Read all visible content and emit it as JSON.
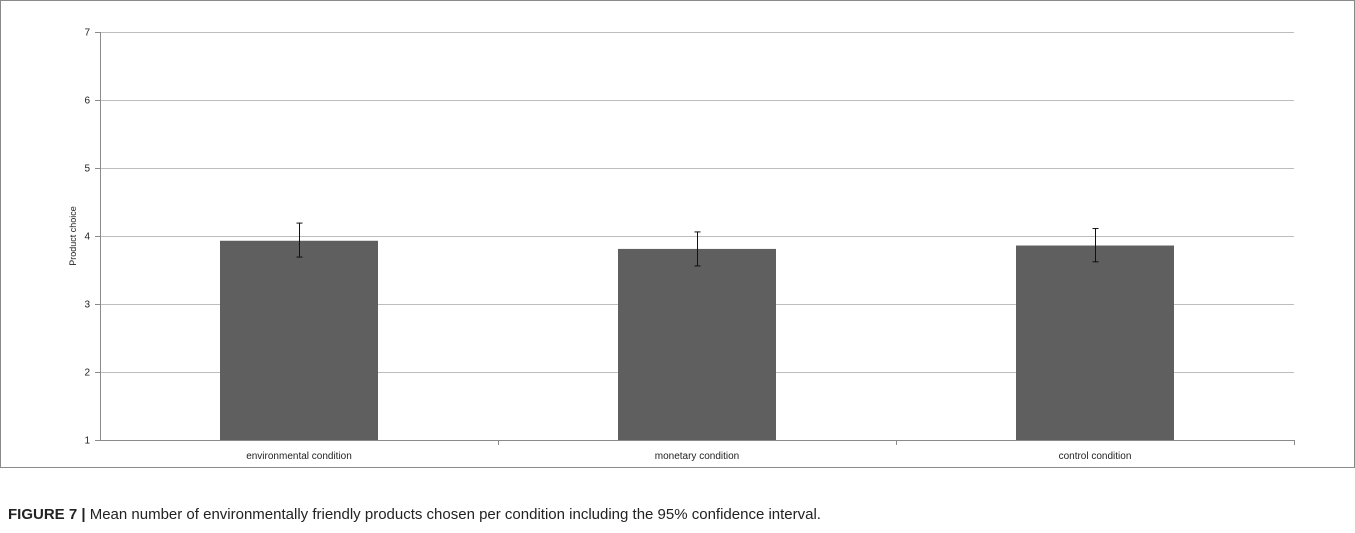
{
  "caption": {
    "label": "FIGURE 7 |",
    "text": "Mean number of environmentally friendly products chosen per condition including the 95% confidence interval."
  },
  "chart_data": {
    "type": "bar",
    "categories": [
      "environmental condition",
      "monetary condition",
      "control condition"
    ],
    "values": [
      3.93,
      3.81,
      3.86
    ],
    "error_bars": [
      {
        "low": 3.69,
        "high": 4.19
      },
      {
        "low": 3.56,
        "high": 4.06
      },
      {
        "low": 3.62,
        "high": 4.11
      }
    ],
    "ylabel": "Product choice",
    "xlabel": "",
    "ylim": [
      1,
      7
    ],
    "yticks": [
      1,
      2,
      3,
      4,
      5,
      6,
      7
    ],
    "grid": true,
    "legend": "none",
    "bar_color": "#5f5f5f"
  }
}
